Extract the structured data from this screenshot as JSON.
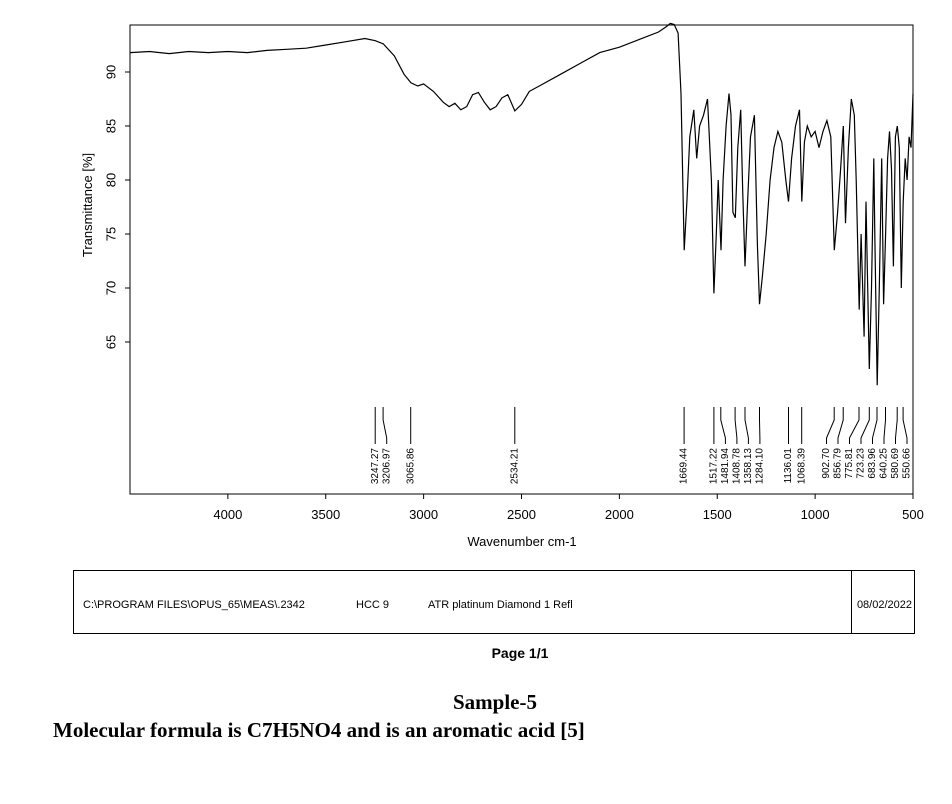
{
  "chart_data": {
    "type": "line",
    "title": "",
    "xlabel": "Wavenumber cm-1",
    "ylabel": "Transmittance [%]",
    "xlim": [
      4500,
      500
    ],
    "ylim": [
      58,
      94
    ],
    "x_reversed": true,
    "grid": false,
    "x_ticks": [
      4000,
      3500,
      3000,
      2500,
      2000,
      1500,
      1000,
      500
    ],
    "y_ticks": [
      65,
      70,
      75,
      80,
      85,
      90
    ],
    "series": [
      {
        "x": [
          4500,
          4400,
          4300,
          4200,
          4100,
          4000,
          3900,
          3800,
          3700,
          3600,
          3500,
          3400,
          3300,
          3247,
          3206,
          3150,
          3100,
          3065,
          3030,
          3000,
          2950,
          2900,
          2870,
          2840,
          2810,
          2780,
          2750,
          2720,
          2690,
          2660,
          2630,
          2600,
          2570,
          2534,
          2500,
          2460,
          2400,
          2300,
          2200,
          2100,
          2000,
          1900,
          1800,
          1760,
          1740,
          1720,
          1700,
          1685,
          1669,
          1655,
          1640,
          1620,
          1605,
          1590,
          1570,
          1550,
          1530,
          1517,
          1505,
          1495,
          1481,
          1470,
          1455,
          1440,
          1430,
          1420,
          1408,
          1395,
          1380,
          1370,
          1358,
          1345,
          1330,
          1310,
          1295,
          1284,
          1270,
          1250,
          1230,
          1210,
          1190,
          1170,
          1150,
          1136,
          1120,
          1100,
          1080,
          1068,
          1055,
          1040,
          1020,
          1000,
          980,
          960,
          940,
          920,
          902,
          885,
          870,
          856,
          845,
          830,
          815,
          800,
          790,
          775,
          765,
          750,
          740,
          723,
          712,
          700,
          695,
          683,
          672,
          660,
          650,
          640,
          630,
          620,
          610,
          600,
          590,
          580,
          570,
          560,
          550,
          540,
          530,
          520,
          510,
          500
        ],
        "y": [
          91.8,
          91.9,
          91.7,
          91.9,
          91.8,
          91.9,
          91.8,
          92,
          92.1,
          92.2,
          92.5,
          92.8,
          93.1,
          92.9,
          92.6,
          91.5,
          89.8,
          89,
          88.7,
          88.9,
          88.2,
          87.2,
          86.8,
          87.1,
          86.5,
          86.8,
          87.9,
          88.1,
          87.2,
          86.5,
          86.8,
          87.6,
          87.9,
          86.4,
          87,
          88.2,
          88.8,
          89.8,
          90.8,
          91.8,
          92.3,
          93,
          93.7,
          94.2,
          94.5,
          94.4,
          93.6,
          88,
          73.5,
          78,
          84,
          86.5,
          82,
          85,
          86,
          87.5,
          80,
          69.5,
          75,
          80,
          73.5,
          80,
          85,
          88,
          86,
          77,
          76.5,
          83,
          86.5,
          79,
          72,
          78,
          84,
          86,
          74,
          68.5,
          71,
          75,
          80,
          83,
          84.5,
          83.5,
          80,
          78,
          82,
          85,
          86.5,
          78,
          83.5,
          85,
          84,
          84.5,
          83,
          84.5,
          85.5,
          84,
          73.5,
          77,
          81,
          85,
          76,
          83,
          87.5,
          86,
          80,
          68,
          75,
          65.5,
          78,
          62.5,
          70,
          82,
          75,
          61,
          70,
          82,
          68.5,
          75,
          82,
          84.5,
          81,
          72,
          84,
          85,
          83,
          70,
          78,
          82,
          80,
          84,
          83,
          88
        ]
      }
    ],
    "peaks": [
      3247.27,
      3206.97,
      3065.86,
      2534.21,
      1669.44,
      1517.22,
      1481.94,
      1408.78,
      1358.13,
      1284.1,
      1136.01,
      1068.39,
      902.7,
      856.79,
      775.81,
      723.23,
      683.96,
      640.25,
      580.69,
      550.66
    ]
  },
  "peak_labels": [
    "3247.27",
    "3206.97",
    "3065.86",
    "2534.21",
    "1669.44",
    "1517.22",
    "1481.94",
    "1408.78",
    "1358.13",
    "1284.10",
    "1136.01",
    "1068.39",
    "902.70",
    "856.79",
    "775.81",
    "723.23",
    "683.96",
    "640.25",
    "580.69",
    "550.66"
  ],
  "footer": {
    "path": "C:\\PROGRAM FILES\\OPUS_65\\MEAS\\.2342",
    "sample": "HCC 9",
    "method": "ATR platinum Diamond 1 Refl",
    "date": "08/02/2022"
  },
  "page_label": "Page 1/1",
  "sample_title": "Sample-5",
  "caption": "Molecular formula is C7H5NO4 and is an aromatic acid [5]"
}
